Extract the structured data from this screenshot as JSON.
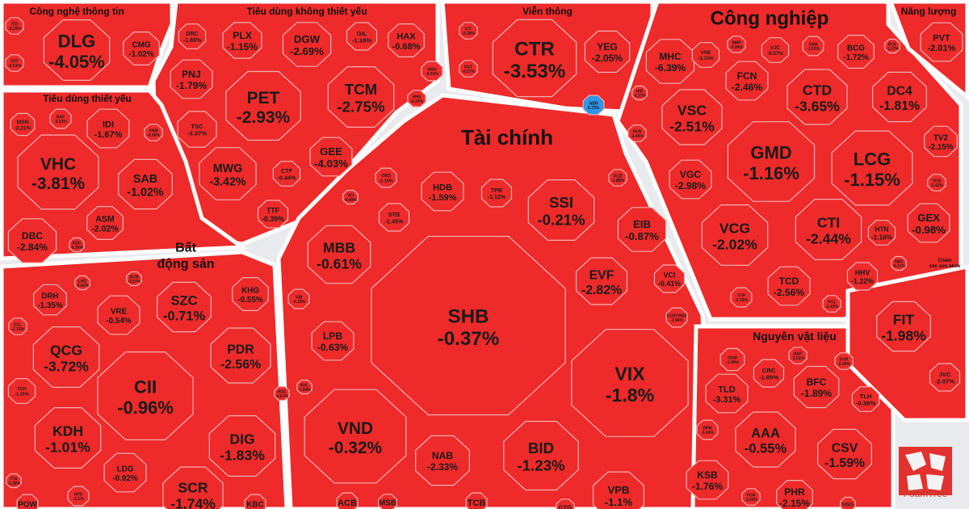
{
  "chart_data": {
    "type": "treemap",
    "sectors": [
      {
        "name": "Công nghệ thông tin",
        "items": [
          {
            "ticker": "DLG",
            "change": "-4.05%"
          },
          {
            "ticker": "CMG",
            "change": "-1.02%"
          },
          {
            "ticker": "ITD",
            "change": "-3.15%"
          },
          {
            "ticker": "FPT",
            "change": "-0.51%"
          }
        ]
      },
      {
        "name": "Tiêu dùng không thiết yếu",
        "items": [
          {
            "ticker": "DRC",
            "change": "-1.65%"
          },
          {
            "ticker": "PLX",
            "change": "-1.15%"
          },
          {
            "ticker": "DGW",
            "change": "-2.69%"
          },
          {
            "ticker": "GIL",
            "change": "-1.18%"
          },
          {
            "ticker": "HAX",
            "change": "-0.68%"
          },
          {
            "ticker": "MSH",
            "change": "-0.53%"
          },
          {
            "ticker": "HHS",
            "change": "-0.34%"
          },
          {
            "ticker": "PNJ",
            "change": "-1.79%"
          },
          {
            "ticker": "PET",
            "change": "-2.93%"
          },
          {
            "ticker": "TCM",
            "change": "-2.75%"
          },
          {
            "ticker": "TSC",
            "change": "-3.37%"
          },
          {
            "ticker": "MWG",
            "change": "-3.42%"
          },
          {
            "ticker": "CTF",
            "change": "-0.44%"
          },
          {
            "ticker": "GEE",
            "change": "-4.03%"
          },
          {
            "ticker": "TTF",
            "change": "-0.39%"
          },
          {
            "ticker": "VCI",
            "change": "-0.49%"
          }
        ]
      },
      {
        "name": "Viễn thông",
        "items": [
          {
            "ticker": "CTR",
            "change": "-3.53%"
          },
          {
            "ticker": "YEG",
            "change": "-2.05%"
          },
          {
            "ticker": "ICT",
            "change": "-0.38%"
          },
          {
            "ticker": "SGT",
            "change": "-0.27%"
          },
          {
            "ticker": "ABR",
            "change": "6.73%"
          }
        ]
      },
      {
        "name": "Công nghiệp",
        "items": [
          {
            "ticker": "MHC",
            "change": "-6.39%"
          },
          {
            "ticker": "VNE",
            "change": "-3.15%"
          },
          {
            "ticker": "BMP",
            "change": "-0.94%"
          },
          {
            "ticker": "VJC",
            "change": "-0.57%"
          },
          {
            "ticker": "SAM",
            "change": "-1.52%"
          },
          {
            "ticker": "BCG",
            "change": "-1.72%"
          },
          {
            "ticker": "BCE",
            "change": "-1.17%"
          },
          {
            "ticker": "FCN",
            "change": "-2.46%"
          },
          {
            "ticker": "CTD",
            "change": "-3.65%"
          },
          {
            "ticker": "DC4",
            "change": "-1.81%"
          },
          {
            "ticker": "VSC",
            "change": "-2.51%"
          },
          {
            "ticker": "GMD",
            "change": "-1.16%"
          },
          {
            "ticker": "LCG",
            "change": "-1.15%"
          },
          {
            "ticker": "TV2",
            "change": "-2.15%"
          },
          {
            "ticker": "VGC",
            "change": "-2.98%"
          },
          {
            "ticker": "VOS",
            "change": "-2.42%"
          },
          {
            "ticker": "VCG",
            "change": "-2.02%"
          },
          {
            "ticker": "CTI",
            "change": "-2.44%"
          },
          {
            "ticker": "HTN",
            "change": "-1.16%"
          },
          {
            "ticker": "GEX",
            "change": "-0.98%"
          },
          {
            "ticker": "HHV",
            "change": "-1.22%"
          },
          {
            "ticker": "TCD",
            "change": "-2.56%"
          },
          {
            "ticker": "VTP",
            "change": "-2.28%"
          },
          {
            "ticker": "HID",
            "change": "-0.37%"
          },
          {
            "ticker": "HVN",
            "change": "-3.46%"
          },
          {
            "ticker": "SBG",
            "change": "-0.37%"
          },
          {
            "ticker": "PC1",
            "change": "-2.43%"
          }
        ]
      },
      {
        "name": "Năng lượng",
        "items": [
          {
            "ticker": "PVT",
            "change": "-2.01%"
          }
        ]
      },
      {
        "name": "Tiêu dùng thiết yếu",
        "items": [
          {
            "ticker": "MSN",
            "change": "-2.21%"
          },
          {
            "ticker": "NAF",
            "change": "-0.22%"
          },
          {
            "ticker": "IDI",
            "change": "-1.67%"
          },
          {
            "ticker": "VNM",
            "change": "-0.36%"
          },
          {
            "ticker": "VHC",
            "change": "-3.81%"
          },
          {
            "ticker": "SAB",
            "change": "-1.02%"
          },
          {
            "ticker": "ASM",
            "change": "-2.02%"
          },
          {
            "ticker": "DBC",
            "change": "-2.84%"
          },
          {
            "ticker": "KDC",
            "change": "-0.36%"
          }
        ]
      },
      {
        "name": "Tài chính",
        "items": [
          {
            "ticker": "ORS",
            "change": "-1.15%"
          },
          {
            "ticker": "HDB",
            "change": "-1.59%"
          },
          {
            "ticker": "TPB",
            "change": "-1.12%"
          },
          {
            "ticker": "OCB",
            "change": "-1.88%"
          },
          {
            "ticker": "STB",
            "change": "-1.45%"
          },
          {
            "ticker": "SSI",
            "change": "-0.21%"
          },
          {
            "ticker": "EIB",
            "change": "-0.87%"
          },
          {
            "ticker": "MBB",
            "change": "-0.61%"
          },
          {
            "ticker": "EVF",
            "change": "-2.82%"
          },
          {
            "ticker": "VCI",
            "change": "-0.41%"
          },
          {
            "ticker": "SHB",
            "change": "-0.37%"
          },
          {
            "ticker": "VIB",
            "change": "-2.19%"
          },
          {
            "ticker": "LPB",
            "change": "-0.63%"
          },
          {
            "ticker": "E1VFVN30",
            "change": "-1.94%"
          },
          {
            "ticker": "VIX",
            "change": "-1.8%"
          },
          {
            "ticker": "VND",
            "change": "-0.32%"
          },
          {
            "ticker": "NAB",
            "change": "-2.33%"
          },
          {
            "ticker": "BID",
            "change": "-1.23%"
          },
          {
            "ticker": "VPB",
            "change": "-1.1%"
          },
          {
            "ticker": "ACB",
            "change": ""
          },
          {
            "ticker": "MSB",
            "change": ""
          },
          {
            "ticker": "TCB",
            "change": ""
          },
          {
            "ticker": "CTG",
            "change": ""
          }
        ]
      },
      {
        "name": "Bất động sản",
        "items": [
          {
            "ticker": "DRH",
            "change": "-1.35%"
          },
          {
            "ticker": "VRE",
            "change": "-0.54%"
          },
          {
            "ticker": "SZC",
            "change": "-0.71%"
          },
          {
            "ticker": "KHG",
            "change": "-0.55%"
          },
          {
            "ticker": "CCL",
            "change": "-1.72%"
          },
          {
            "ticker": "QCG",
            "change": "-3.72%"
          },
          {
            "ticker": "PDR",
            "change": "-2.56%"
          },
          {
            "ticker": "TCH",
            "change": "-1.25%"
          },
          {
            "ticker": "CII",
            "change": "-0.96%"
          },
          {
            "ticker": "KDH",
            "change": "-1.01%"
          },
          {
            "ticker": "DIG",
            "change": "-1.83%"
          },
          {
            "ticker": "LDG",
            "change": "-0.92%"
          },
          {
            "ticker": "TTA",
            "change": "-2.28%"
          },
          {
            "ticker": "HPX",
            "change": "-2.1%"
          },
          {
            "ticker": "SCR",
            "change": "-1.74%"
          },
          {
            "ticker": "POW",
            "change": ""
          },
          {
            "ticker": "KBC",
            "change": ""
          },
          {
            "ticker": "HDC",
            "change": "-0.87%"
          },
          {
            "ticker": "NVL",
            "change": "-1.94%"
          },
          {
            "ticker": "LHG",
            "change": "-0.81%"
          },
          {
            "ticker": "BCM",
            "change": "-2.57%"
          }
        ]
      },
      {
        "name": "Nguyên vật liệu",
        "items": [
          {
            "ticker": "DCM",
            "change": "-1.49%"
          },
          {
            "ticker": "CRC",
            "change": "-1.89%"
          },
          {
            "ticker": "HAP",
            "change": "-3.51%"
          },
          {
            "ticker": "GVR",
            "change": "-2.38%"
          },
          {
            "ticker": "TLD",
            "change": "-3.31%"
          },
          {
            "ticker": "BFC",
            "change": "-1.89%"
          },
          {
            "ticker": "TLH",
            "change": "-0.36%"
          },
          {
            "ticker": "DPM",
            "change": "-1.04%"
          },
          {
            "ticker": "AAA",
            "change": "-0.55%"
          },
          {
            "ticker": "CSV",
            "change": "-1.59%"
          },
          {
            "ticker": "KSB",
            "change": "-1.76%"
          },
          {
            "ticker": "FCM",
            "change": "-1.85%"
          },
          {
            "ticker": "PHR",
            "change": "-2.15%"
          },
          {
            "ticker": "HSG",
            "change": ""
          }
        ]
      },
      {
        "name": "Chăm sóc sức khỏe",
        "items": [
          {
            "ticker": "FIT",
            "change": "-1.98%"
          },
          {
            "ticker": "JVC",
            "change": "-2.07%"
          }
        ]
      }
    ]
  },
  "colors": {
    "loss": "#ee2a2a",
    "gain": "#2f95e6",
    "border": "#ffffff",
    "background": "#e9eaee"
  },
  "branding": {
    "logo_text": "FoamTree"
  }
}
